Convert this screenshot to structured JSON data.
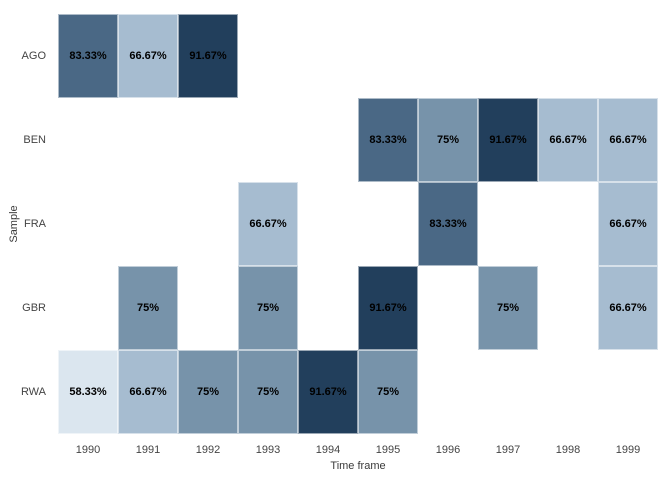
{
  "chart_data": {
    "type": "heatmap",
    "title": "",
    "xlabel": "Time frame",
    "ylabel": "Sample",
    "x_categories": [
      "1990",
      "1991",
      "1992",
      "1993",
      "1994",
      "1995",
      "1996",
      "1997",
      "1998",
      "1999"
    ],
    "y_categories": [
      "AGO",
      "BEN",
      "FRA",
      "GBR",
      "RWA"
    ],
    "legend": "none",
    "grid": "off",
    "background_color": "#ffffff",
    "cell_label_color": "#000000",
    "value_colors": {
      "58.33%": "#dbe6ef",
      "66.67%": "#a6bcd0",
      "75%": "#7793aa",
      "83.33%": "#4a6885",
      "91.67%": "#223f5c"
    },
    "cells": [
      {
        "row": "AGO",
        "col": "1990",
        "value": 83.33,
        "label": "83.33%"
      },
      {
        "row": "AGO",
        "col": "1991",
        "value": 66.67,
        "label": "66.67%"
      },
      {
        "row": "AGO",
        "col": "1992",
        "value": 91.67,
        "label": "91.67%"
      },
      {
        "row": "BEN",
        "col": "1995",
        "value": 83.33,
        "label": "83.33%"
      },
      {
        "row": "BEN",
        "col": "1996",
        "value": 75,
        "label": "75%"
      },
      {
        "row": "BEN",
        "col": "1997",
        "value": 91.67,
        "label": "91.67%"
      },
      {
        "row": "BEN",
        "col": "1998",
        "value": 66.67,
        "label": "66.67%"
      },
      {
        "row": "BEN",
        "col": "1999",
        "value": 66.67,
        "label": "66.67%"
      },
      {
        "row": "FRA",
        "col": "1993",
        "value": 66.67,
        "label": "66.67%"
      },
      {
        "row": "FRA",
        "col": "1996",
        "value": 83.33,
        "label": "83.33%"
      },
      {
        "row": "FRA",
        "col": "1999",
        "value": 66.67,
        "label": "66.67%"
      },
      {
        "row": "GBR",
        "col": "1991",
        "value": 75,
        "label": "75%"
      },
      {
        "row": "GBR",
        "col": "1993",
        "value": 75,
        "label": "75%"
      },
      {
        "row": "GBR",
        "col": "1995",
        "value": 91.67,
        "label": "91.67%"
      },
      {
        "row": "GBR",
        "col": "1997",
        "value": 75,
        "label": "75%"
      },
      {
        "row": "GBR",
        "col": "1999",
        "value": 66.67,
        "label": "66.67%"
      },
      {
        "row": "RWA",
        "col": "1990",
        "value": 58.33,
        "label": "58.33%"
      },
      {
        "row": "RWA",
        "col": "1991",
        "value": 66.67,
        "label": "66.67%"
      },
      {
        "row": "RWA",
        "col": "1992",
        "value": 75,
        "label": "75%"
      },
      {
        "row": "RWA",
        "col": "1993",
        "value": 75,
        "label": "75%"
      },
      {
        "row": "RWA",
        "col": "1994",
        "value": 91.67,
        "label": "91.67%"
      },
      {
        "row": "RWA",
        "col": "1995",
        "value": 75,
        "label": "75%"
      }
    ]
  }
}
